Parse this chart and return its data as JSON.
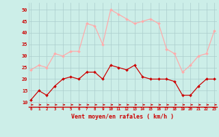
{
  "hours": [
    0,
    1,
    2,
    3,
    4,
    5,
    6,
    7,
    8,
    9,
    10,
    11,
    12,
    13,
    14,
    15,
    16,
    17,
    18,
    19,
    20,
    21,
    22,
    23
  ],
  "wind_avg": [
    11,
    15,
    13,
    17,
    20,
    21,
    20,
    23,
    23,
    20,
    26,
    25,
    24,
    26,
    21,
    20,
    20,
    20,
    19,
    13,
    13,
    17,
    20,
    20
  ],
  "wind_gust": [
    24,
    26,
    25,
    31,
    30,
    32,
    32,
    44,
    43,
    35,
    50,
    48,
    46,
    44,
    45,
    46,
    44,
    33,
    31,
    23,
    26,
    30,
    31,
    41
  ],
  "avg_color": "#cc0000",
  "gust_color": "#ffaaaa",
  "bg_color": "#cceee8",
  "grid_color": "#aacccc",
  "axis_color": "#cc0000",
  "xlabel": "Vent moyen/en rafales ( km/h )",
  "yticks": [
    10,
    15,
    20,
    25,
    30,
    35,
    40,
    45,
    50
  ],
  "ylim": [
    8,
    53
  ],
  "xlim": [
    0,
    23
  ]
}
